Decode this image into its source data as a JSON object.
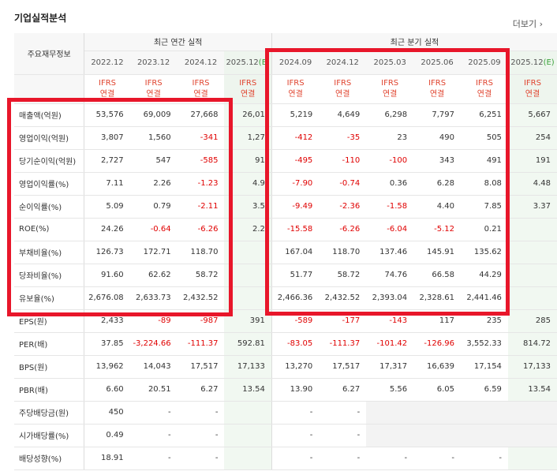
{
  "section": {
    "title": "기업실적분석",
    "more_label": "더보기",
    "more_icon": "chevron-right-icon"
  },
  "table": {
    "main_header": "주요재무정보",
    "annual_group": "최근 연간 실적",
    "quarterly_group": "최근 분기 실적",
    "annual_periods": [
      "2022.12",
      "2023.12",
      "2024.12",
      "2025.12"
    ],
    "quarterly_periods": [
      "2024.09",
      "2024.12",
      "2025.03",
      "2025.06",
      "2025.09",
      "2025.12"
    ],
    "estimate_mark": "E",
    "ifrs_line1": "IFRS",
    "ifrs_line2": "연결",
    "rows": [
      {
        "label": "매출액(억원)",
        "annual": [
          "53,576",
          "69,009",
          "27,668",
          "26,01"
        ],
        "quarterly": [
          "5,219",
          "4,649",
          "6,298",
          "7,797",
          "6,251",
          "5,667"
        ]
      },
      {
        "label": "영업이익(억원)",
        "annual": [
          "3,807",
          "1,560",
          "-341",
          "1,27"
        ],
        "quarterly": [
          "-412",
          "-35",
          "23",
          "490",
          "505",
          "254"
        ]
      },
      {
        "label": "당기순이익(억원)",
        "annual": [
          "2,727",
          "547",
          "-585",
          "91"
        ],
        "quarterly": [
          "-495",
          "-110",
          "-100",
          "343",
          "491",
          "191"
        ]
      },
      {
        "label": "영업이익률(%)",
        "annual": [
          "7.11",
          "2.26",
          "-1.23",
          "4.9"
        ],
        "quarterly": [
          "-7.90",
          "-0.74",
          "0.36",
          "6.28",
          "8.08",
          "4.48"
        ]
      },
      {
        "label": "순이익률(%)",
        "annual": [
          "5.09",
          "0.79",
          "-2.11",
          "3.5"
        ],
        "quarterly": [
          "-9.49",
          "-2.36",
          "-1.58",
          "4.40",
          "7.85",
          "3.37"
        ]
      },
      {
        "label": "ROE(%)",
        "annual": [
          "24.26",
          "-0.64",
          "-6.26",
          "2.2"
        ],
        "quarterly": [
          "-15.58",
          "-6.26",
          "-6.04",
          "-5.12",
          "0.21",
          ""
        ]
      },
      {
        "label": "부채비율(%)",
        "annual": [
          "126.73",
          "172.71",
          "118.70",
          ""
        ],
        "quarterly": [
          "167.04",
          "118.70",
          "137.46",
          "145.91",
          "135.62",
          ""
        ]
      },
      {
        "label": "당좌비율(%)",
        "annual": [
          "91.60",
          "62.62",
          "58.72",
          ""
        ],
        "quarterly": [
          "51.77",
          "58.72",
          "74.76",
          "66.58",
          "44.29",
          ""
        ]
      },
      {
        "label": "유보율(%)",
        "annual": [
          "2,676.08",
          "2,633.73",
          "2,432.52",
          ""
        ],
        "quarterly": [
          "2,466.36",
          "2,432.52",
          "2,393.04",
          "2,328.61",
          "2,441.46",
          ""
        ]
      },
      {
        "label": "EPS(원)",
        "annual": [
          "2,433",
          "-89",
          "-987",
          "391"
        ],
        "quarterly": [
          "-589",
          "-177",
          "-143",
          "117",
          "235",
          "285"
        ]
      },
      {
        "label": "PER(배)",
        "annual": [
          "37.85",
          "-3,224.66",
          "-111.37",
          "592.81"
        ],
        "quarterly": [
          "-83.05",
          "-111.37",
          "-101.42",
          "-126.96",
          "3,552.33",
          "814.72"
        ]
      },
      {
        "label": "BPS(원)",
        "annual": [
          "13,962",
          "14,043",
          "17,517",
          "17,133"
        ],
        "quarterly": [
          "13,270",
          "17,517",
          "17,317",
          "16,639",
          "17,154",
          "17,133"
        ]
      },
      {
        "label": "PBR(배)",
        "annual": [
          "6.60",
          "20.51",
          "6.27",
          "13.54"
        ],
        "quarterly": [
          "13.90",
          "6.27",
          "5.56",
          "6.05",
          "6.59",
          "13.54"
        ]
      },
      {
        "label": "주당배당금(원)",
        "annual": [
          "450",
          "-",
          "-",
          ""
        ],
        "quarterly": [
          "-",
          "-",
          "",
          "",
          "",
          ""
        ]
      },
      {
        "label": "시가배당률(%)",
        "annual": [
          "0.49",
          "-",
          "-",
          ""
        ],
        "quarterly": [
          "-",
          "-",
          "",
          "",
          "",
          ""
        ]
      },
      {
        "label": "배당성향(%)",
        "annual": [
          "18.91",
          "-",
          "-",
          ""
        ],
        "quarterly": [
          "-",
          "-",
          "-",
          "-",
          "-",
          ""
        ]
      }
    ]
  },
  "colors": {
    "highlight_box": "#e8162a",
    "negative": "#e00000",
    "ifrs": "#e0442f",
    "estimate_bg": "#f1f8f1"
  }
}
